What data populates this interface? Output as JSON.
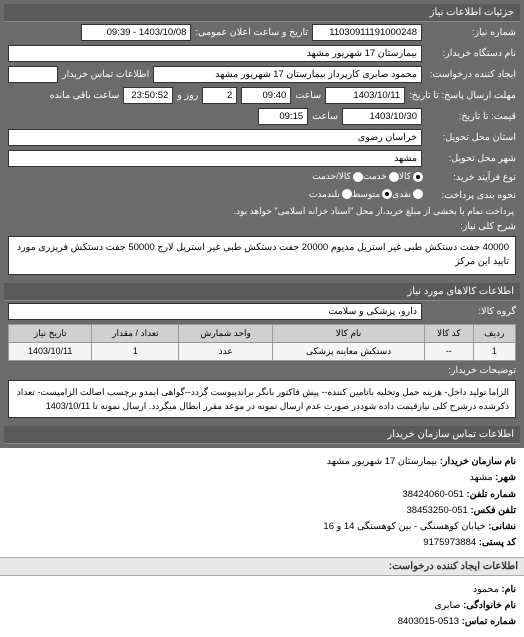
{
  "panelHeaders": {
    "details": "جزئیات اطلاعات نیاز",
    "goodsInfo": "اطلاعات کالاهای مورد نیاز",
    "contact": "اطلاعات تماس سازمان خریدار"
  },
  "fields": {
    "reqNoLabel": "شماره نیاز:",
    "reqNo": "11030911191000248",
    "announceLabel": "تاریخ و ساعت اعلان عمومی:",
    "announce": "1403/10/08 - 09:39",
    "orgLabel": "نام دستگاه خریدار:",
    "org": "بیمارستان 17 شهریور مشهد",
    "requesterLabel": "ایجاد کننده درخواست:",
    "requester": "محمود صابری کارپرداز بیمارستان 17 شهریور مشهد",
    "contactInfoLabel": "اطلاعات تماس خریدار",
    "contactInfo": "",
    "deadlineLabel": "مهلت ارسال پاسخ: تا تاریخ:",
    "deadlineDate": "1403/10/11",
    "timeLabel": "ساعت",
    "deadlineTime": "09:40",
    "daysLabel": "روز و",
    "days": "2",
    "remainLabel": "ساعت باقی مانده",
    "remainTime": "23:50:52",
    "priceToLabel": "قیمت: تا تاریخ:",
    "priceToDate": "1403/10/30",
    "priceToTime": "09:15",
    "placeLabel": "استان محل تحویل:",
    "place": "خراسان رضوی",
    "cityLabel": "شهر محل تحویل:",
    "city": "مشهد",
    "itemTypeLabel": "نوع فرآیند خرید:",
    "payTypeLabel": "نحوه بندی پرداخت:",
    "payNote": "پرداخت تمام یا بخشی از مبلغ خرید،از محل \"اسناد خزانه اسلامی\" خواهد بود.",
    "keywordsLabel": "شرح کلی نیاز:",
    "keywords": "40000 جفت دستکش طبی غیر استریل مدیوم 20000 جفت دستکش طبی غیر استریل لارج 50000 جفت دستکش فریزری مورد تایید این مرکز",
    "goodsGroupLabel": "گروه کالا:",
    "goodsGroup": "دارو، پزشکی و سلامت",
    "descLabel": "توضیحات خریدار:",
    "desc": "الزاما تولید داخل- هزینه حمل وتخلیه باتامین کننده-- پیش فاکتور بانگر براندپیوست گردد--گواهی ایمدو برچسب اصالت الزامیست- تعداد ذکرشده درشرح کلی نیازقیمت داده شوددر صورت عدم ارسال نمونه در موعد مقرر ابطال میگردد. ارسال نمونه تا 1403/10/11"
  },
  "radios": {
    "itemType": [
      {
        "label": "کالا",
        "checked": true
      },
      {
        "label": "خدمت",
        "checked": false
      },
      {
        "label": "کالا/خدمت",
        "checked": false
      }
    ],
    "payType": [
      {
        "label": "نقدی",
        "checked": false
      },
      {
        "label": "متوسط",
        "checked": true
      },
      {
        "label": "بلندمدت",
        "checked": false
      }
    ]
  },
  "table": {
    "headers": [
      "ردیف",
      "کد کالا",
      "نام کالا",
      "واحد شمارش",
      "تعداد / مقدار",
      "تاریخ نیاز"
    ],
    "rows": [
      [
        "1",
        "--",
        "دستکش معاینه پزشکی",
        "عدد",
        "1",
        "1403/10/11"
      ]
    ]
  },
  "contact": {
    "orgLabel": "نام سازمان خریدار:",
    "org": "بیمارستان 17 شهریور مشهد",
    "cityLabel": "شهر:",
    "city": "مشهد",
    "telLabel": "شماره تلفن:",
    "tel": "051-38424060",
    "faxLabel": "تلفن فکس:",
    "fax": "051-38453250",
    "addrLabel": "نشانی:",
    "addr": "خیابان کوهسنگی - بین کوهسنگی 14 و 16",
    "postLabel": "کد پستی:",
    "post": "9175973884",
    "creatorHeader": "اطلاعات ایجاد کننده درخواست:",
    "nameLabel": "نام:",
    "name": "محمود",
    "familyLabel": "نام خانوادگی:",
    "family": "صابری",
    "phoneLabel": "شماره تماس:",
    "phone": "0513-8403015"
  }
}
